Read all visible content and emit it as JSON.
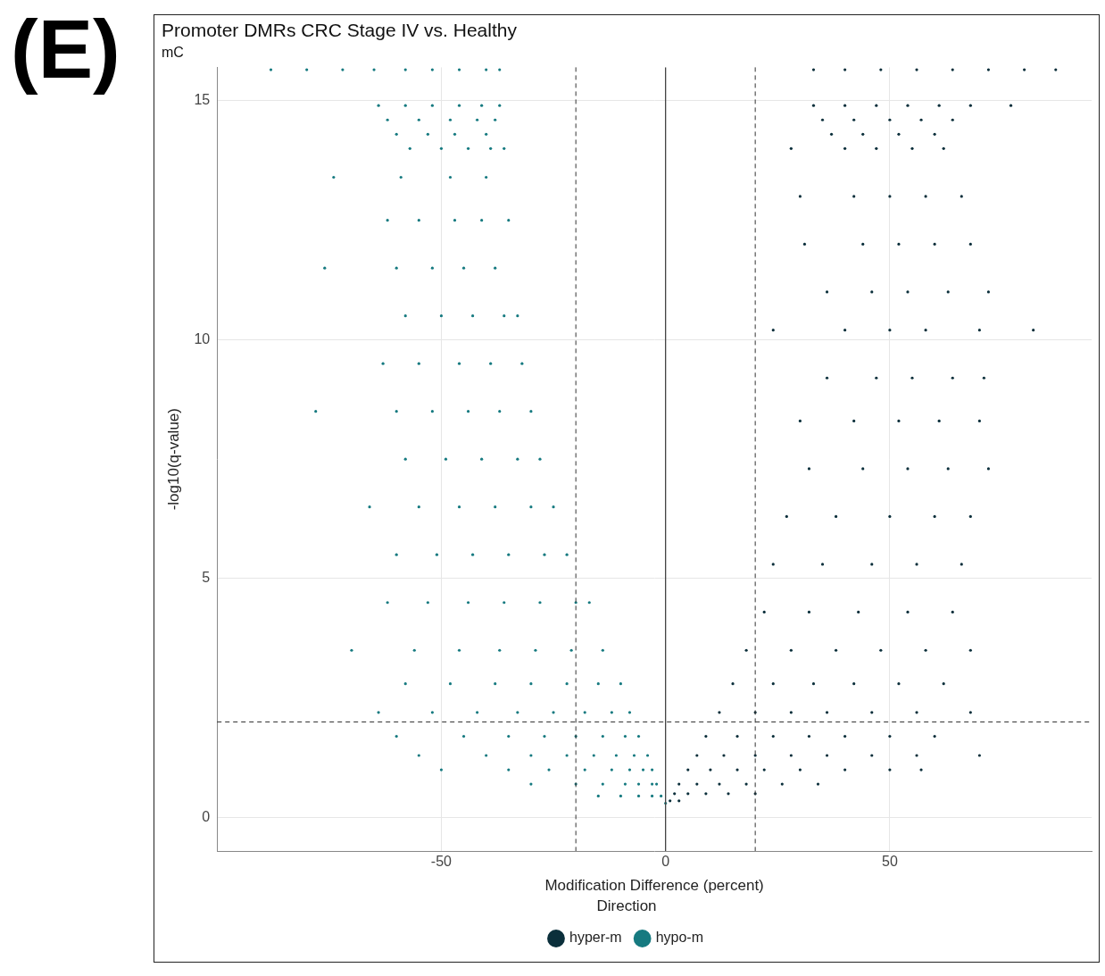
{
  "panel_label": "(E)",
  "chart_data": {
    "type": "scatter",
    "title": "Promoter DMRs CRC Stage IV vs. Healthy",
    "subtitle": "mC",
    "x_label": "Modification Difference (percent)",
    "y_label": "-log10(q-value)",
    "xlim": [
      -100,
      95
    ],
    "xticks": [
      -50,
      0,
      50
    ],
    "ylim": [
      -0.7,
      15.7
    ],
    "yticks": [
      0,
      5,
      10,
      15
    ],
    "grid": true,
    "legend": "bottom",
    "legend_title": "Direction",
    "marker": "circle",
    "reference_lines": [
      {
        "axis": "x",
        "value": 0,
        "line_style": "solid"
      },
      {
        "axis": "x",
        "value": -20,
        "line_style": "dashed"
      },
      {
        "axis": "x",
        "value": 20,
        "line_style": "dashed"
      },
      {
        "axis": "y",
        "value": 2,
        "line_style": "dashed"
      }
    ],
    "series": [
      {
        "name": "hyper-m",
        "color": "#0b2f3b",
        "x": [
          33,
          40,
          48,
          56,
          64,
          72,
          80,
          87,
          33,
          40,
          47,
          54,
          61,
          68,
          77,
          35,
          42,
          50,
          57,
          64,
          37,
          44,
          52,
          60,
          28,
          40,
          47,
          55,
          62,
          30,
          42,
          50,
          58,
          66,
          31,
          44,
          52,
          60,
          68,
          36,
          46,
          54,
          63,
          72,
          24,
          40,
          50,
          58,
          70,
          82,
          36,
          47,
          55,
          64,
          71,
          30,
          42,
          52,
          61,
          70,
          32,
          44,
          54,
          63,
          72,
          27,
          38,
          50,
          60,
          68,
          24,
          35,
          46,
          56,
          66,
          22,
          32,
          43,
          54,
          64,
          18,
          28,
          38,
          48,
          58,
          68,
          15,
          24,
          33,
          42,
          52,
          62,
          12,
          20,
          28,
          36,
          46,
          56,
          68,
          9,
          16,
          24,
          32,
          40,
          50,
          60,
          7,
          13,
          20,
          28,
          36,
          46,
          56,
          70,
          5,
          10,
          16,
          22,
          30,
          40,
          50,
          57,
          3,
          7,
          12,
          18,
          26,
          34,
          2,
          5,
          9,
          14,
          20,
          1,
          3
        ],
        "values": [
          15.65,
          15.65,
          15.65,
          15.65,
          15.65,
          15.65,
          15.65,
          15.65,
          14.9,
          14.9,
          14.9,
          14.9,
          14.9,
          14.9,
          14.9,
          14.6,
          14.6,
          14.6,
          14.6,
          14.6,
          14.3,
          14.3,
          14.3,
          14.3,
          14.0,
          14.0,
          14.0,
          14.0,
          14.0,
          13.0,
          13.0,
          13.0,
          13.0,
          13.0,
          12.0,
          12.0,
          12.0,
          12.0,
          12.0,
          11.0,
          11.0,
          11.0,
          11.0,
          11.0,
          10.2,
          10.2,
          10.2,
          10.2,
          10.2,
          10.2,
          9.2,
          9.2,
          9.2,
          9.2,
          9.2,
          8.3,
          8.3,
          8.3,
          8.3,
          8.3,
          7.3,
          7.3,
          7.3,
          7.3,
          7.3,
          6.3,
          6.3,
          6.3,
          6.3,
          6.3,
          5.3,
          5.3,
          5.3,
          5.3,
          5.3,
          4.3,
          4.3,
          4.3,
          4.3,
          4.3,
          3.5,
          3.5,
          3.5,
          3.5,
          3.5,
          3.5,
          2.8,
          2.8,
          2.8,
          2.8,
          2.8,
          2.8,
          2.2,
          2.2,
          2.2,
          2.2,
          2.2,
          2.2,
          2.2,
          1.7,
          1.7,
          1.7,
          1.7,
          1.7,
          1.7,
          1.7,
          1.3,
          1.3,
          1.3,
          1.3,
          1.3,
          1.3,
          1.3,
          1.3,
          1.0,
          1.0,
          1.0,
          1.0,
          1.0,
          1.0,
          1.0,
          1.0,
          0.7,
          0.7,
          0.7,
          0.7,
          0.7,
          0.7,
          0.5,
          0.5,
          0.5,
          0.5,
          0.5,
          0.35,
          0.35
        ]
      },
      {
        "name": "hypo-m",
        "color": "#167a80",
        "x": [
          -88,
          -80,
          -72,
          -65,
          -58,
          -52,
          -46,
          -40,
          -37,
          -64,
          -58,
          -52,
          -46,
          -41,
          -37,
          -62,
          -55,
          -48,
          -42,
          -38,
          -60,
          -53,
          -47,
          -40,
          -57,
          -50,
          -44,
          -39,
          -36,
          -74,
          -59,
          -48,
          -40,
          -62,
          -55,
          -47,
          -41,
          -35,
          -76,
          -60,
          -52,
          -45,
          -38,
          -58,
          -50,
          -43,
          -36,
          -33,
          -63,
          -55,
          -46,
          -39,
          -32,
          -78,
          -60,
          -52,
          -44,
          -37,
          -30,
          -58,
          -49,
          -41,
          -33,
          -28,
          -66,
          -55,
          -46,
          -38,
          -30,
          -25,
          -60,
          -51,
          -43,
          -35,
          -27,
          -22,
          -62,
          -53,
          -44,
          -36,
          -28,
          -20,
          -17,
          -70,
          -56,
          -46,
          -37,
          -29,
          -21,
          -14,
          -58,
          -48,
          -38,
          -30,
          -22,
          -15,
          -10,
          -64,
          -52,
          -42,
          -33,
          -25,
          -18,
          -12,
          -8,
          -60,
          -45,
          -35,
          -27,
          -20,
          -14,
          -9,
          -6,
          -55,
          -40,
          -30,
          -22,
          -16,
          -11,
          -7,
          -4,
          -50,
          -35,
          -26,
          -18,
          -12,
          -8,
          -5,
          -3,
          -30,
          -20,
          -14,
          -9,
          -6,
          -3,
          -2,
          -15,
          -10,
          -6,
          -3,
          -1,
          0
        ],
        "values": [
          15.65,
          15.65,
          15.65,
          15.65,
          15.65,
          15.65,
          15.65,
          15.65,
          15.65,
          14.9,
          14.9,
          14.9,
          14.9,
          14.9,
          14.9,
          14.6,
          14.6,
          14.6,
          14.6,
          14.6,
          14.3,
          14.3,
          14.3,
          14.3,
          14.0,
          14.0,
          14.0,
          14.0,
          14.0,
          13.4,
          13.4,
          13.4,
          13.4,
          12.5,
          12.5,
          12.5,
          12.5,
          12.5,
          11.5,
          11.5,
          11.5,
          11.5,
          11.5,
          10.5,
          10.5,
          10.5,
          10.5,
          10.5,
          9.5,
          9.5,
          9.5,
          9.5,
          9.5,
          8.5,
          8.5,
          8.5,
          8.5,
          8.5,
          8.5,
          7.5,
          7.5,
          7.5,
          7.5,
          7.5,
          6.5,
          6.5,
          6.5,
          6.5,
          6.5,
          6.5,
          5.5,
          5.5,
          5.5,
          5.5,
          5.5,
          5.5,
          4.5,
          4.5,
          4.5,
          4.5,
          4.5,
          4.5,
          4.5,
          3.5,
          3.5,
          3.5,
          3.5,
          3.5,
          3.5,
          3.5,
          2.8,
          2.8,
          2.8,
          2.8,
          2.8,
          2.8,
          2.8,
          2.2,
          2.2,
          2.2,
          2.2,
          2.2,
          2.2,
          2.2,
          2.2,
          1.7,
          1.7,
          1.7,
          1.7,
          1.7,
          1.7,
          1.7,
          1.7,
          1.3,
          1.3,
          1.3,
          1.3,
          1.3,
          1.3,
          1.3,
          1.3,
          1.0,
          1.0,
          1.0,
          1.0,
          1.0,
          1.0,
          1.0,
          1.0,
          0.7,
          0.7,
          0.7,
          0.7,
          0.7,
          0.7,
          0.7,
          0.45,
          0.45,
          0.45,
          0.45,
          0.45,
          0.3
        ]
      }
    ]
  }
}
